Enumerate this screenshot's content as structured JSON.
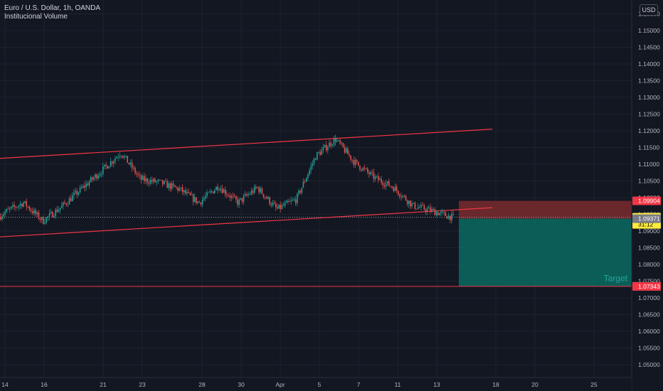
{
  "legend": {
    "symbol": "Euro / U.S. Dollar, 1h, OANDA",
    "indicator": "Institucional Volume"
  },
  "currency": "USD",
  "colors": {
    "background": "#131722",
    "grid": "#1e222d",
    "up": "#26a69a",
    "down": "#ef5350",
    "trendline": "#f23645",
    "stop_zone": "#7a2a2e",
    "target_zone": "#0a6b62",
    "axis_text": "#b2b5be"
  },
  "price_axis": {
    "labels": [
      "1.15500",
      "1.15000",
      "1.14500",
      "1.14000",
      "1.13500",
      "1.13000",
      "1.12500",
      "1.12000",
      "1.11500",
      "1.11000",
      "1.10500",
      "1.10000",
      "1.09500",
      "1.09000",
      "1.08500",
      "1.08000",
      "1.07500",
      "1.07000",
      "1.06500",
      "1.06000",
      "1.05500",
      "1.05000"
    ],
    "tags": [
      {
        "price": 1.09904,
        "text": "1.09904",
        "bg": "#f23645",
        "fg": "#ffffff"
      },
      {
        "price": 1.09411,
        "text": "1.09411",
        "bg": "#ffeb3b",
        "fg": "#000000",
        "sub": "31:12"
      },
      {
        "price": 1.09371,
        "text": "1.09371",
        "bg": "#787b86",
        "fg": "#ffffff"
      },
      {
        "price": 1.07346,
        "text": "1.07346",
        "bg": "#26a69a",
        "fg": "#ffffff"
      },
      {
        "price": 1.07343,
        "text": "1.07343",
        "bg": "#f23645",
        "fg": "#ffffff"
      }
    ]
  },
  "time_axis": {
    "labels": [
      "14",
      "16",
      "21",
      "23",
      "28",
      "30",
      "Apr",
      "5",
      "7",
      "11",
      "13",
      "18",
      "20",
      "25"
    ]
  },
  "chart_data": {
    "type": "candlestick",
    "symbol": "EURUSD",
    "timeframe": "1h",
    "close_path": [
      {
        "date": "Mar 13",
        "price": 1.0905
      },
      {
        "date": "Mar 14",
        "price": 1.0955
      },
      {
        "date": "Mar 15",
        "price": 1.0985
      },
      {
        "date": "Mar 16",
        "price": 1.093
      },
      {
        "date": "Mar 17",
        "price": 1.0975
      },
      {
        "date": "Mar 19",
        "price": 1.108
      },
      {
        "date": "Mar 20",
        "price": 1.1135
      },
      {
        "date": "Mar 21",
        "price": 1.1055
      },
      {
        "date": "Mar 22",
        "price": 1.1045
      },
      {
        "date": "Mar 23",
        "price": 1.1025
      },
      {
        "date": "Mar 24",
        "price": 1.0985
      },
      {
        "date": "Mar 25",
        "price": 1.1035
      },
      {
        "date": "Mar 26",
        "price": 1.0985
      },
      {
        "date": "Mar 27",
        "price": 1.103
      },
      {
        "date": "Mar 28",
        "price": 1.0965
      },
      {
        "date": "Mar 29",
        "price": 1.0995
      },
      {
        "date": "Mar 30",
        "price": 1.1125
      },
      {
        "date": "Mar 31",
        "price": 1.1175
      },
      {
        "date": "Apr 1",
        "price": 1.1105
      },
      {
        "date": "Apr 2",
        "price": 1.106
      },
      {
        "date": "Apr 3",
        "price": 1.103
      },
      {
        "date": "Apr 4",
        "price": 1.0975
      },
      {
        "date": "Apr 5",
        "price": 1.096
      },
      {
        "date": "Apr 6",
        "price": 1.0941
      }
    ],
    "upper_channel": [
      {
        "date": "Mar 13",
        "price": 1.1115
      },
      {
        "date": "Apr 8",
        "price": 1.1205
      }
    ],
    "lower_channel": [
      {
        "date": "Mar 13",
        "price": 1.088
      },
      {
        "date": "Apr 8",
        "price": 1.097
      }
    ],
    "horizontal_line": 1.07343,
    "position": {
      "type": "short",
      "stop": 1.09904,
      "entry": 1.09371,
      "target": 1.07346,
      "target_label": "Target"
    },
    "current_price": 1.09411,
    "countdown": "31:12",
    "ylim": [
      1.0485,
      1.1565
    ],
    "grid": true
  }
}
